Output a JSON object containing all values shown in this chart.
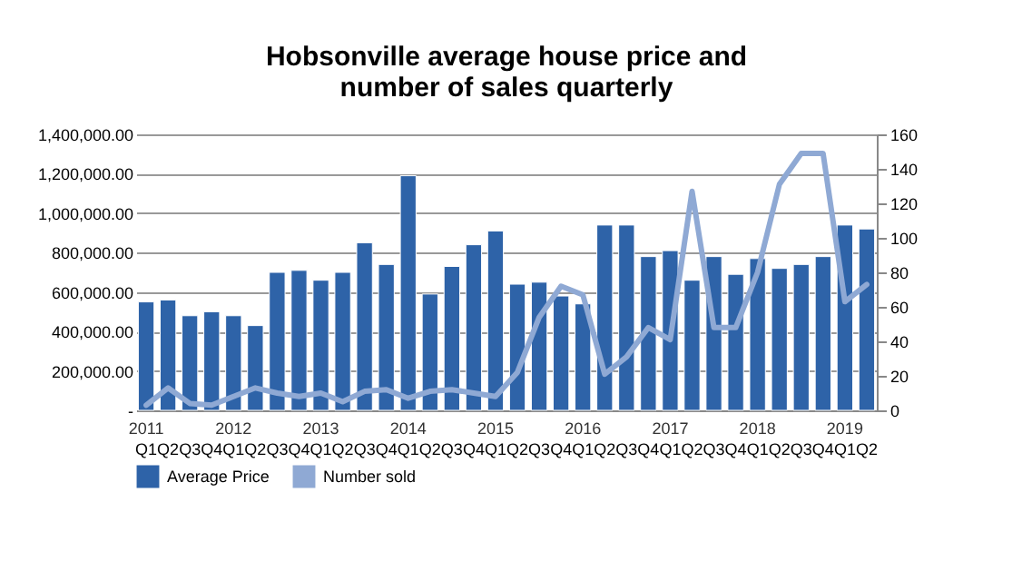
{
  "chart_data": {
    "type": "bar",
    "title": "Hobsonville average house price and number of sales quarterly",
    "categories": [
      "Q1",
      "Q2",
      "Q3",
      "Q4",
      "Q1",
      "Q2",
      "Q3",
      "Q4",
      "Q1",
      "Q2",
      "Q3",
      "Q4",
      "Q1",
      "Q2",
      "Q3",
      "Q4",
      "Q1",
      "Q2",
      "Q3",
      "Q4",
      "Q1",
      "Q2",
      "Q3",
      "Q4",
      "Q1",
      "Q2",
      "Q3",
      "Q4",
      "Q1",
      "Q2",
      "Q3",
      "Q4",
      "Q1",
      "Q2"
    ],
    "annotations": [
      "2011",
      "2012",
      "2013",
      "2014",
      "2015",
      "2016",
      "2017",
      "2018",
      "2019"
    ],
    "series": [
      {
        "name": "Average Price",
        "color": "#2e63a8",
        "values": [
          550000,
          560000,
          480000,
          500000,
          480000,
          430000,
          700000,
          710000,
          660000,
          700000,
          850000,
          740000,
          1190000,
          590000,
          730000,
          840000,
          910000,
          640000,
          650000,
          580000,
          540000,
          940000,
          940000,
          780000,
          810000,
          660000,
          780000,
          690000,
          770000,
          720000,
          740000,
          780000,
          940000,
          920000
        ]
      },
      {
        "name": "Number sold",
        "type": "line",
        "axis": "y2",
        "color": "#8fa9d4",
        "values": [
          3,
          13,
          4,
          3,
          8,
          13,
          10,
          8,
          10,
          5,
          11,
          12,
          7,
          11,
          12,
          10,
          8,
          22,
          54,
          72,
          67,
          21,
          31,
          48,
          41,
          127,
          48,
          48,
          80,
          131,
          149,
          149,
          63,
          73
        ]
      }
    ],
    "ylim": [
      0,
      1400000
    ],
    "yticks": [
      {
        "value": 0,
        "label": "-"
      },
      {
        "value": 200000,
        "label": "200,000.00"
      },
      {
        "value": 400000,
        "label": "400,000.00"
      },
      {
        "value": 600000,
        "label": "600,000.00"
      },
      {
        "value": 800000,
        "label": "800,000.00"
      },
      {
        "value": 1000000,
        "label": "1,000,000.00"
      },
      {
        "value": 1200000,
        "label": "1,200,000.00"
      },
      {
        "value": 1400000,
        "label": "1,400,000.00"
      }
    ],
    "y2lim": [
      0,
      160
    ],
    "y2ticks": [
      0,
      20,
      40,
      60,
      80,
      100,
      120,
      140,
      160
    ],
    "grid": "y",
    "legend": "bottom"
  }
}
